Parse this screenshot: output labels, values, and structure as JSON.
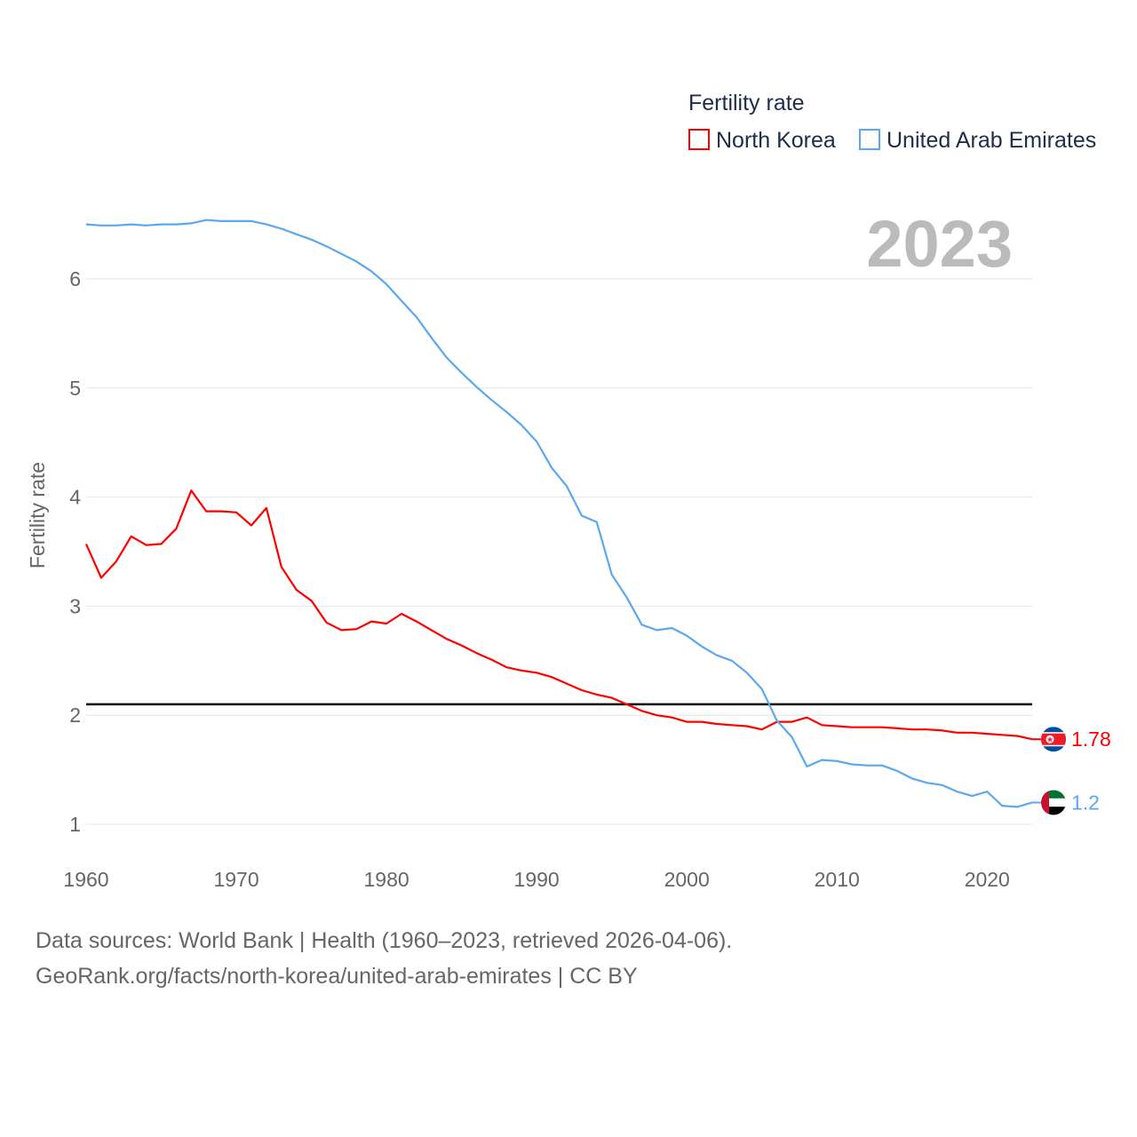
{
  "chart_data": {
    "type": "line",
    "title": "Fertility rate",
    "ylabel": "Fertility rate",
    "xlabel": "",
    "year_label": "2023",
    "xlim": [
      1960,
      2023
    ],
    "ylim": [
      0.8,
      6.7
    ],
    "yticks": [
      1,
      2,
      3,
      4,
      5,
      6
    ],
    "xticks": [
      1960,
      1970,
      1980,
      1990,
      2000,
      2010,
      2020
    ],
    "grid": true,
    "legend_position": "top-right",
    "reference_line": {
      "value": 2.1,
      "color": "#000000"
    },
    "x": [
      1960,
      1961,
      1962,
      1963,
      1964,
      1965,
      1966,
      1967,
      1968,
      1969,
      1970,
      1971,
      1972,
      1973,
      1974,
      1975,
      1976,
      1977,
      1978,
      1979,
      1980,
      1981,
      1982,
      1983,
      1984,
      1985,
      1986,
      1987,
      1988,
      1989,
      1990,
      1991,
      1992,
      1993,
      1994,
      1995,
      1996,
      1997,
      1998,
      1999,
      2000,
      2001,
      2002,
      2003,
      2004,
      2005,
      2006,
      2007,
      2008,
      2009,
      2010,
      2011,
      2012,
      2013,
      2014,
      2015,
      2016,
      2017,
      2018,
      2019,
      2020,
      2021,
      2022,
      2023
    ],
    "series": [
      {
        "name": "North Korea",
        "color": "#ff0000",
        "end_label": "1.78",
        "flag": "north-korea",
        "values": [
          3.57,
          3.26,
          3.41,
          3.64,
          3.56,
          3.57,
          3.71,
          4.06,
          3.87,
          3.87,
          3.86,
          3.74,
          3.9,
          3.36,
          3.15,
          3.05,
          2.85,
          2.78,
          2.79,
          2.86,
          2.84,
          2.93,
          2.86,
          2.78,
          2.7,
          2.64,
          2.57,
          2.51,
          2.44,
          2.41,
          2.39,
          2.35,
          2.29,
          2.23,
          2.19,
          2.16,
          2.1,
          2.04,
          2.0,
          1.98,
          1.94,
          1.94,
          1.92,
          1.91,
          1.9,
          1.87,
          1.94,
          1.94,
          1.98,
          1.91,
          1.9,
          1.89,
          1.89,
          1.89,
          1.88,
          1.87,
          1.87,
          1.86,
          1.84,
          1.84,
          1.83,
          1.82,
          1.81,
          1.78
        ]
      },
      {
        "name": "United Arab Emirates",
        "color": "#5ba8ee",
        "end_label": "1.2",
        "flag": "uae",
        "values": [
          6.5,
          6.49,
          6.49,
          6.5,
          6.49,
          6.5,
          6.5,
          6.51,
          6.54,
          6.53,
          6.53,
          6.53,
          6.5,
          6.46,
          6.41,
          6.36,
          6.3,
          6.23,
          6.16,
          6.07,
          5.95,
          5.8,
          5.65,
          5.46,
          5.28,
          5.14,
          5.01,
          4.89,
          4.78,
          4.66,
          4.51,
          4.27,
          4.1,
          3.83,
          3.77,
          3.29,
          3.08,
          2.83,
          2.78,
          2.8,
          2.73,
          2.63,
          2.55,
          2.5,
          2.39,
          2.24,
          1.95,
          1.8,
          1.53,
          1.59,
          1.58,
          1.55,
          1.54,
          1.54,
          1.49,
          1.42,
          1.38,
          1.36,
          1.3,
          1.26,
          1.3,
          1.17,
          1.16,
          1.2
        ]
      }
    ]
  },
  "footer": {
    "line1": "Data sources: World Bank | Health (1960–2023, retrieved 2026-04-06).",
    "line2": "GeoRank.org/facts/north-korea/united-arab-emirates | CC BY"
  }
}
